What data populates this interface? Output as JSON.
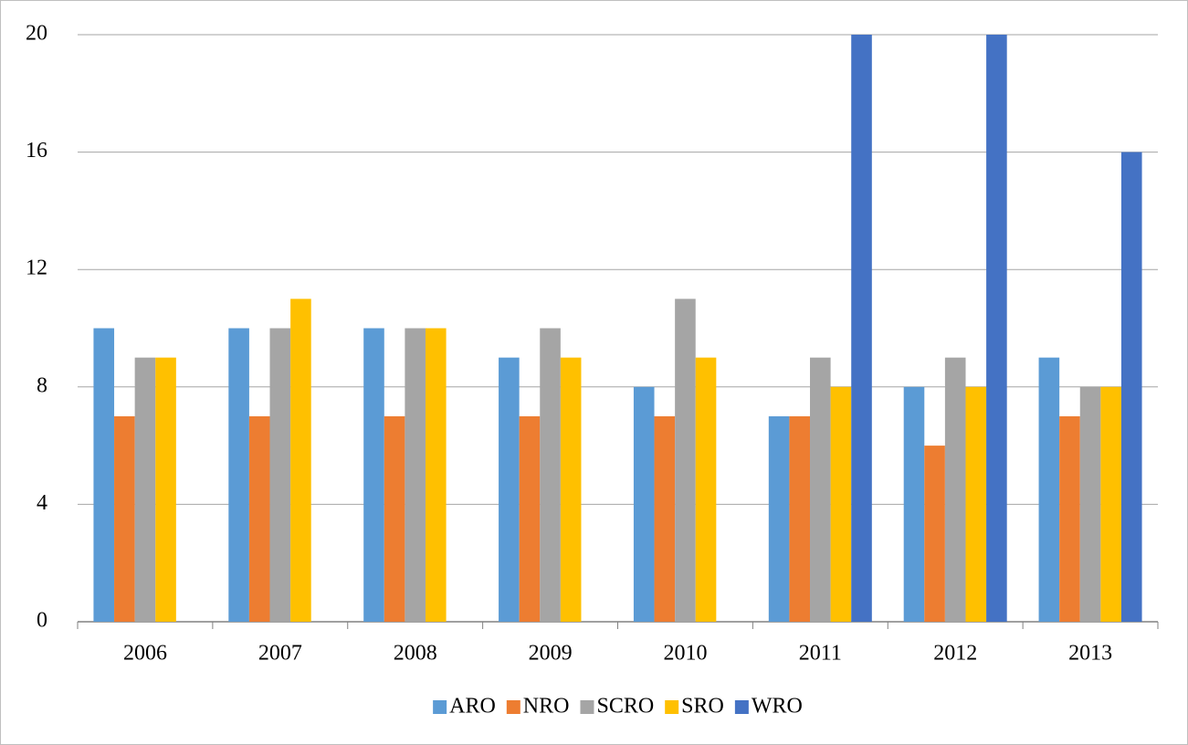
{
  "chart_data": {
    "type": "bar",
    "categories": [
      "2006",
      "2007",
      "2008",
      "2009",
      "2010",
      "2011",
      "2012",
      "2013"
    ],
    "series": [
      {
        "name": "ARO",
        "color": "#5b9bd5",
        "values": [
          10,
          10,
          10,
          9,
          8,
          7,
          8,
          9
        ]
      },
      {
        "name": "NRO",
        "color": "#ed7d31",
        "values": [
          7,
          7,
          7,
          7,
          7,
          7,
          6,
          7
        ]
      },
      {
        "name": "SCRO",
        "color": "#a5a5a5",
        "values": [
          9,
          10,
          10,
          10,
          11,
          9,
          9,
          8
        ]
      },
      {
        "name": "SRO",
        "color": "#ffc000",
        "values": [
          9,
          11,
          10,
          9,
          9,
          8,
          8,
          8
        ]
      },
      {
        "name": "WRO",
        "color": "#4472c4",
        "values": [
          null,
          null,
          null,
          null,
          null,
          20,
          20,
          16
        ]
      }
    ],
    "ylim": [
      0,
      20
    ],
    "yticks": [
      0,
      4,
      8,
      12,
      16,
      20
    ],
    "grid": true,
    "legend": "bottom"
  }
}
